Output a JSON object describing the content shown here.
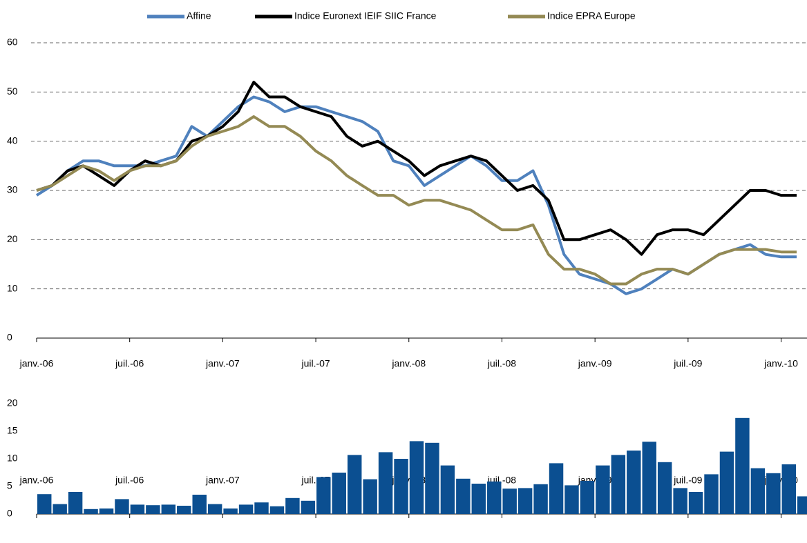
{
  "chart_data": [
    {
      "type": "line",
      "x": [
        "2006-01",
        "2006-02",
        "2006-03",
        "2006-04",
        "2006-05",
        "2006-06",
        "2006-07",
        "2006-08",
        "2006-09",
        "2006-10",
        "2006-11",
        "2006-12",
        "2007-01",
        "2007-02",
        "2007-03",
        "2007-04",
        "2007-05",
        "2007-06",
        "2007-07",
        "2007-08",
        "2007-09",
        "2007-10",
        "2007-11",
        "2007-12",
        "2008-01",
        "2008-02",
        "2008-03",
        "2008-04",
        "2008-05",
        "2008-06",
        "2008-07",
        "2008-08",
        "2008-09",
        "2008-10",
        "2008-11",
        "2008-12",
        "2009-01",
        "2009-02",
        "2009-03",
        "2009-04",
        "2009-05",
        "2009-06",
        "2009-07",
        "2009-08",
        "2009-09",
        "2009-10",
        "2009-11",
        "2009-12",
        "2010-01",
        "2010-02"
      ],
      "series": [
        {
          "name": "Affine",
          "color": "#4f81bd",
          "values": [
            29,
            31,
            34,
            36,
            36,
            35,
            35,
            35,
            36,
            37,
            43,
            41,
            44,
            47,
            49,
            48,
            46,
            47,
            47,
            46,
            45,
            44,
            42,
            36,
            35,
            31,
            33,
            35,
            37,
            35,
            32,
            32,
            34,
            27,
            17,
            13,
            12,
            11,
            9,
            10,
            12,
            14,
            13,
            15,
            17,
            18,
            19,
            17,
            16.5,
            16.5
          ]
        },
        {
          "name": "Indice Euronext IEIF SIIC France",
          "color": "#000000",
          "values": [
            30,
            31,
            34,
            35,
            33,
            31,
            34,
            36,
            35,
            36,
            40,
            41,
            43,
            46,
            52,
            49,
            49,
            47,
            46,
            45,
            41,
            39,
            40,
            38,
            36,
            33,
            35,
            36,
            37,
            36,
            33,
            30,
            31,
            28,
            20,
            20,
            21,
            22,
            20,
            17,
            21,
            22,
            22,
            21,
            24,
            27,
            30,
            30,
            29,
            29
          ]
        },
        {
          "name": "Indice EPRA Europe",
          "color": "#948a54",
          "values": [
            30,
            31,
            33,
            35,
            34,
            32,
            34,
            35,
            35,
            36,
            39,
            41,
            42,
            43,
            45,
            43,
            43,
            41,
            38,
            36,
            33,
            31,
            29,
            29,
            27,
            28,
            28,
            27,
            26,
            24,
            22,
            22,
            23,
            17,
            14,
            14,
            13,
            11,
            11,
            13,
            14,
            14,
            13,
            15,
            17,
            18,
            18,
            18,
            17.5,
            17.5
          ]
        }
      ],
      "xlim": [
        "2006-01",
        "2010-02"
      ],
      "xticks": [
        {
          "value": "2006-01",
          "label": "janv.-06"
        },
        {
          "value": "2006-07",
          "label": "juil.-06"
        },
        {
          "value": "2007-01",
          "label": "janv.-07"
        },
        {
          "value": "2007-07",
          "label": "juil.-07"
        },
        {
          "value": "2008-01",
          "label": "janv.-08"
        },
        {
          "value": "2008-07",
          "label": "juil.-08"
        },
        {
          "value": "2009-01",
          "label": "janv.-09"
        },
        {
          "value": "2009-07",
          "label": "juil.-09"
        },
        {
          "value": "2010-01",
          "label": "janv.-10"
        }
      ],
      "ylim": [
        0,
        60
      ],
      "yticks": [
        0,
        10,
        20,
        30,
        40,
        50,
        60
      ],
      "grid": true,
      "legend": "top"
    },
    {
      "type": "bar",
      "x": [
        "2006-01",
        "2006-02",
        "2006-03",
        "2006-04",
        "2006-05",
        "2006-06",
        "2006-07",
        "2006-08",
        "2006-09",
        "2006-10",
        "2006-11",
        "2006-12",
        "2007-01",
        "2007-02",
        "2007-03",
        "2007-04",
        "2007-05",
        "2007-06",
        "2007-07",
        "2007-08",
        "2007-09",
        "2007-10",
        "2007-11",
        "2007-12",
        "2008-01",
        "2008-02",
        "2008-03",
        "2008-04",
        "2008-05",
        "2008-06",
        "2008-07",
        "2008-08",
        "2008-09",
        "2008-10",
        "2008-11",
        "2008-12",
        "2009-01",
        "2009-02",
        "2009-03",
        "2009-04",
        "2009-05",
        "2009-06",
        "2009-07",
        "2009-08",
        "2009-09",
        "2009-10",
        "2009-11",
        "2009-12",
        "2010-01",
        "2010-02"
      ],
      "values": [
        3.6,
        1.8,
        4.0,
        0.9,
        1.0,
        2.7,
        1.7,
        1.6,
        1.7,
        1.5,
        3.5,
        1.8,
        1.0,
        1.7,
        2.1,
        1.4,
        2.9,
        2.4,
        6.7,
        7.5,
        10.7,
        6.3,
        11.2,
        10.0,
        13.2,
        12.9,
        8.8,
        6.4,
        5.5,
        5.9,
        4.6,
        4.7,
        5.4,
        9.2,
        5.2,
        6.0,
        8.8,
        10.7,
        11.5,
        13.1,
        9.4,
        4.7,
        4.0,
        7.2,
        11.3,
        17.4,
        8.3,
        7.4,
        9.0,
        3.2
      ],
      "color": "#0b4f91",
      "xlim": [
        "2006-01",
        "2010-02"
      ],
      "xticks": [
        {
          "value": "2006-01",
          "label": "janv.-06"
        },
        {
          "value": "2006-07",
          "label": "juil.-06"
        },
        {
          "value": "2007-01",
          "label": "janv.-07"
        },
        {
          "value": "2007-07",
          "label": "juil.-07"
        },
        {
          "value": "2008-01",
          "label": "janv.-08"
        },
        {
          "value": "2008-07",
          "label": "juil.-08"
        },
        {
          "value": "2009-01",
          "label": "janv.-09"
        },
        {
          "value": "2009-07",
          "label": "juil.-09"
        },
        {
          "value": "2010-01",
          "label": "janv.-10"
        }
      ],
      "ylim": [
        0,
        20
      ],
      "yticks": [
        0,
        5,
        10,
        15,
        20
      ],
      "grid": false
    }
  ]
}
